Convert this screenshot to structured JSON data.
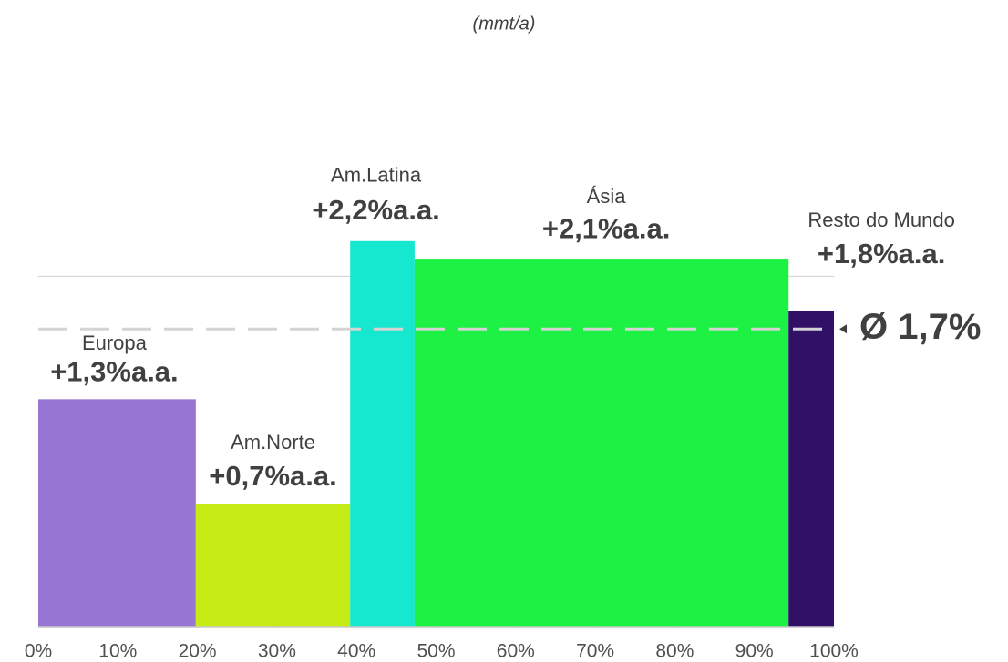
{
  "chart_data": {
    "type": "marimekko",
    "title": "(mmt/a)",
    "categories": [
      "Europa",
      "Am.Norte",
      "Am.Latina",
      "Ásia",
      "Resto do Mundo"
    ],
    "bins": [
      0,
      19.8,
      39.2,
      47.3,
      94.3,
      100
    ],
    "values": [
      1.3,
      0.7,
      2.2,
      2.1,
      1.8
    ],
    "value_labels": [
      "+1,3%a.a.",
      "+0,7%a.a.",
      "+2,2%a.a.",
      "+2,1%a.a.",
      "+1,8%a.a."
    ],
    "colors": [
      "#9775d3",
      "#c5ec14",
      "#16e8cf",
      "#1df244",
      "#311067"
    ],
    "average": {
      "value": 1.7,
      "label": "Ø 1,7%"
    },
    "xlim": [
      0,
      100
    ],
    "xticks": [
      {
        "value": 0,
        "label": "0%"
      },
      {
        "value": 10,
        "label": "10%"
      },
      {
        "value": 20,
        "label": "20%"
      },
      {
        "value": 30,
        "label": "30%"
      },
      {
        "value": 40,
        "label": "40%"
      },
      {
        "value": 50,
        "label": "50%"
      },
      {
        "value": 60,
        "label": "60%"
      },
      {
        "value": 70,
        "label": "70%"
      },
      {
        "value": 80,
        "label": "80%"
      },
      {
        "value": 90,
        "label": "90%"
      },
      {
        "value": 100,
        "label": "100%"
      }
    ],
    "ylim": [
      0,
      3.2
    ],
    "ygrid": [
      2
    ]
  }
}
